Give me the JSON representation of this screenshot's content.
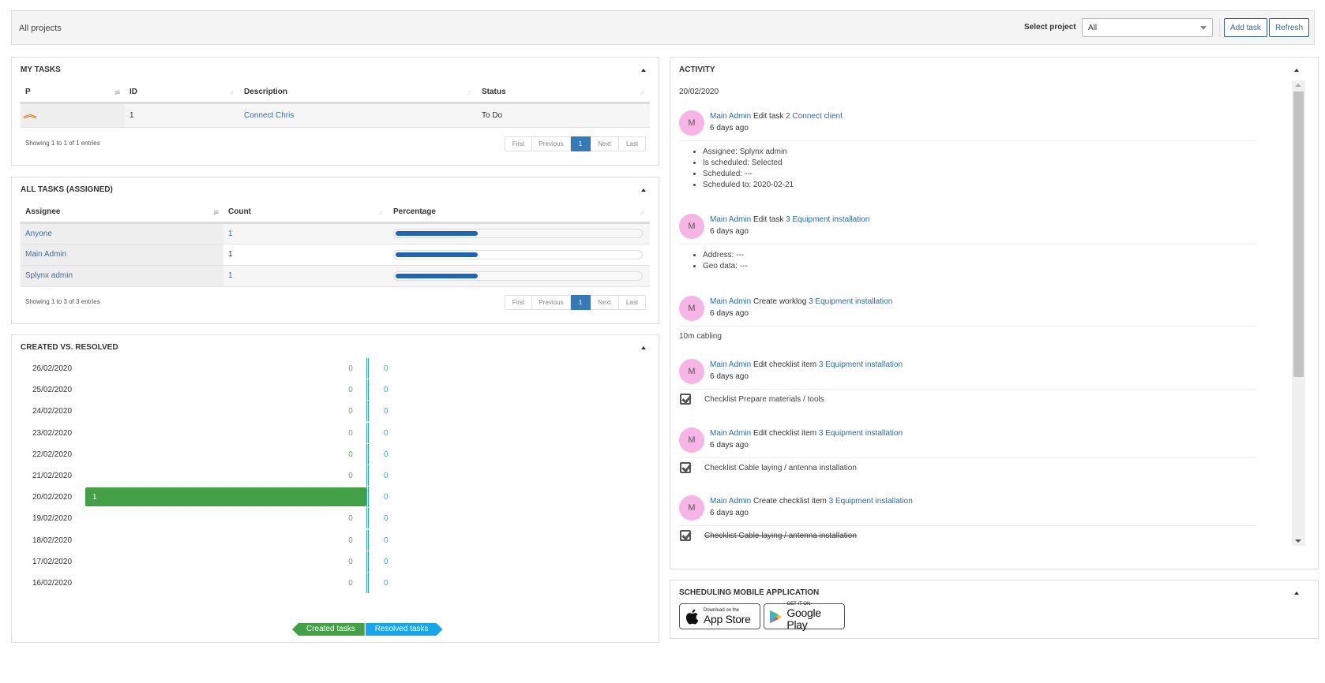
{
  "topbar": {
    "title": "All projects",
    "select_project_label": "Select project",
    "select_project_value": "All",
    "add_task_label": "Add task",
    "refresh_label": "Refresh"
  },
  "my_tasks": {
    "title": "MY TASKS",
    "columns": [
      "P",
      "ID",
      "Description",
      "Status"
    ],
    "rows": [
      {
        "priority": "high",
        "id": "1",
        "description": "Connect Chris",
        "status": "To Do"
      }
    ],
    "entries_info": "Showing 1 to 1 of 1 entries",
    "pager": {
      "first": "First",
      "previous": "Previous",
      "current": "1",
      "next": "Next",
      "last": "Last"
    }
  },
  "all_tasks": {
    "title": "ALL TASKS (ASSIGNED)",
    "columns": [
      "Assignee",
      "Count",
      "Percentage"
    ],
    "rows": [
      {
        "assignee": "Anyone",
        "count": "1",
        "percent": 33
      },
      {
        "assignee": "Main Admin",
        "count": "1",
        "percent": 33
      },
      {
        "assignee": "Splynx admin",
        "count": "1",
        "percent": 33
      }
    ],
    "entries_info": "Showing 1 to 3 of 3 entries",
    "pager": {
      "first": "First",
      "previous": "Previous",
      "current": "1",
      "next": "Next",
      "last": "Last"
    }
  },
  "created_vs_resolved": {
    "title": "CREATED VS. RESOLVED",
    "legend": {
      "created": "Created tasks",
      "resolved": "Resolved tasks"
    },
    "colors": {
      "created": "#43a047",
      "resolved": "#15a6f0"
    }
  },
  "chart_data": {
    "type": "bar",
    "title": "CREATED VS. RESOLVED",
    "categories": [
      "26/02/2020",
      "25/02/2020",
      "24/02/2020",
      "23/02/2020",
      "22/02/2020",
      "21/02/2020",
      "20/02/2020",
      "19/02/2020",
      "18/02/2020",
      "17/02/2020",
      "16/02/2020"
    ],
    "series": [
      {
        "name": "Created tasks",
        "values": [
          0,
          0,
          0,
          0,
          0,
          0,
          1,
          0,
          0,
          0,
          0
        ]
      },
      {
        "name": "Resolved tasks",
        "values": [
          0,
          0,
          0,
          0,
          0,
          0,
          0,
          0,
          0,
          0,
          0
        ]
      }
    ],
    "orientation": "horizontal-diverging",
    "legend_position": "bottom"
  },
  "activity": {
    "title": "ACTIVITY",
    "date": "20/02/2020",
    "items": [
      {
        "avatar": "M",
        "user": "Main Admin",
        "action": "Edit task",
        "target": "2 Connect client",
        "time": "6 days ago",
        "details": [
          "Assignee: Splynx admin",
          "Is scheduled: Selected",
          "Scheduled: ---",
          "Scheduled to: 2020-02-21"
        ]
      },
      {
        "avatar": "M",
        "user": "Main Admin",
        "action": "Edit task",
        "target": "3 Equipment installation",
        "time": "6 days ago",
        "details": [
          "Address: ---",
          "Geo data: ---"
        ]
      },
      {
        "avatar": "M",
        "user": "Main Admin",
        "action": "Create worklog",
        "target": "3 Equipment installation",
        "time": "6 days ago",
        "note": "10m cabling"
      },
      {
        "avatar": "M",
        "user": "Main Admin",
        "action": "Edit checklist item",
        "target": "3 Equipment installation",
        "time": "6 days ago",
        "checklist": "Checklist Prepare materials / tools"
      },
      {
        "avatar": "M",
        "user": "Main Admin",
        "action": "Edit checklist item",
        "target": "3 Equipment installation",
        "time": "6 days ago",
        "checklist": "Checklist Cable laying / antenna installation"
      },
      {
        "avatar": "M",
        "user": "Main Admin",
        "action": "Create checklist item",
        "target": "3 Equipment installation",
        "time": "6 days ago",
        "checklist": "Checklist Cable laying / antenna installation"
      }
    ]
  },
  "mobile_app": {
    "title": "SCHEDULING MOBILE APPLICATION",
    "app_store": {
      "small": "Download on the",
      "big": "App Store"
    },
    "google_play": {
      "small": "GET IT ON",
      "big": "Google Play"
    }
  }
}
